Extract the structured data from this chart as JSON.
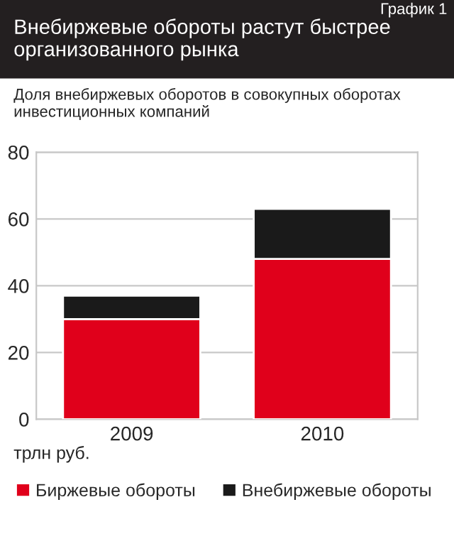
{
  "chart_data": {
    "type": "bar",
    "title": "Внебиржевые обороты растут быстрее организованного рынка",
    "subtitle": "Доля внебиржевых оборотов в совокупных оборотах инвестиционных компаний",
    "annotations": [
      "График 1",
      "трлн руб."
    ],
    "categories": [
      "2009",
      "2010"
    ],
    "series": [
      {
        "name": "Биржевые обороты",
        "color": "#e0001b",
        "values": [
          30,
          48
        ]
      },
      {
        "name": "Внебиржевые обороты",
        "color": "#1a1a1a",
        "values": [
          7,
          15
        ]
      }
    ],
    "stacked": true,
    "ylim": [
      0,
      80
    ],
    "yticks": [
      0,
      20,
      40,
      60,
      80
    ],
    "grid": "y",
    "legend": "bottom"
  }
}
